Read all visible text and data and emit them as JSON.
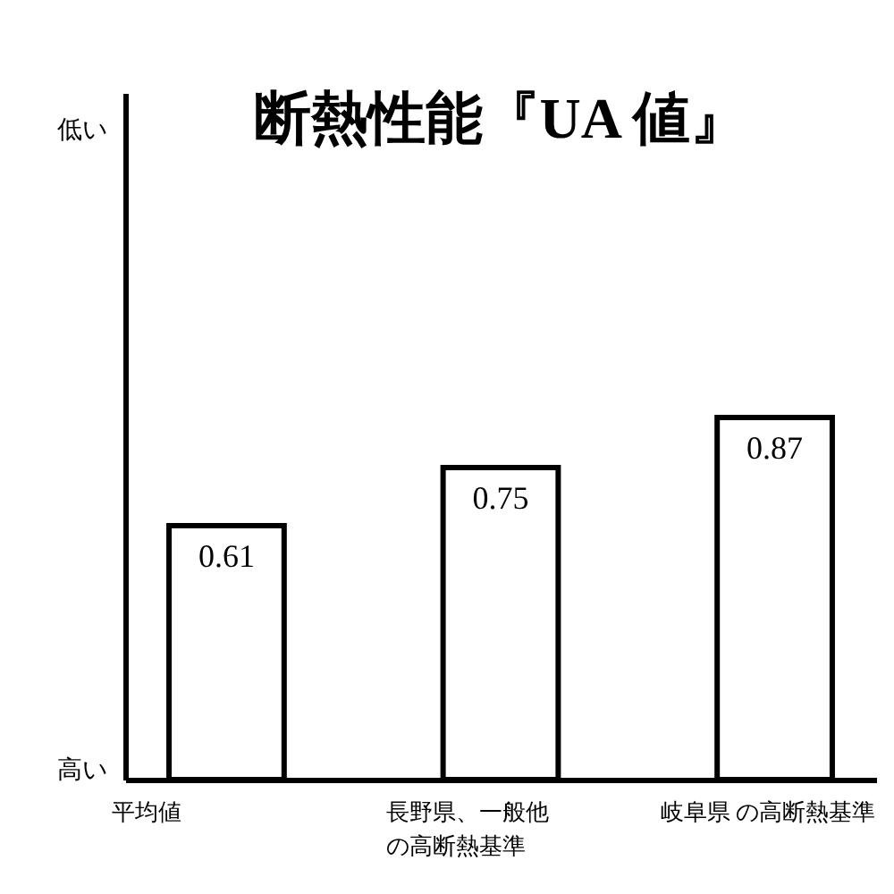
{
  "chart_data": {
    "type": "bar",
    "title": "断熱性能『UA 値』",
    "categories": [
      "平均値",
      "長野県、一般他の高断熱基準",
      "岐阜県 の高断熱基準"
    ],
    "values": [
      0.61,
      0.75,
      0.87
    ],
    "color": "#ffffff",
    "data_labels": true,
    "ylim": [
      0,
      1.65
    ],
    "annotations": [
      "低い",
      "高い"
    ]
  }
}
